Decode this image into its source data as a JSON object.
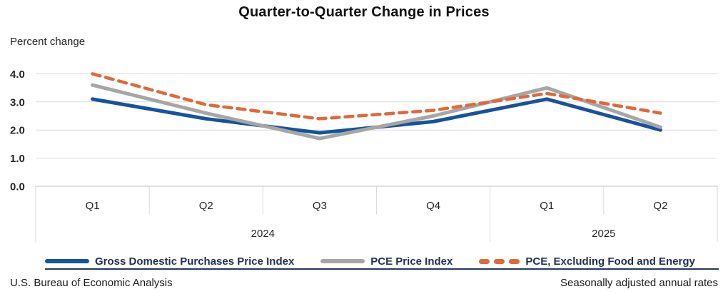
{
  "title": "Quarter-to-Quarter Change in Prices",
  "y_axis_title": "Percent change",
  "footer": {
    "source": "U.S. Bureau of Economic Analysis",
    "note": "Seasonally adjusted annual rates"
  },
  "colors": {
    "gridline": "#d9d9d9",
    "zero_line": "#bfbfbf",
    "tick_text": "#262626",
    "legend_text": "#1f3050",
    "footer_rule": "#223a5e",
    "blue": "#17539b",
    "gray": "#a6a6a6",
    "orange": "#e0693a"
  },
  "chart_data": {
    "type": "line",
    "title": "Quarter-to-Quarter Change in Prices",
    "ylabel": "Percent change",
    "categories": [
      "Q1",
      "Q2",
      "Q3",
      "Q4",
      "Q1",
      "Q2"
    ],
    "year_groups": [
      {
        "label": "2024",
        "span": 4
      },
      {
        "label": "2025",
        "span": 2
      }
    ],
    "yticks": [
      "4.0",
      "3.0",
      "2.0",
      "1.0",
      "0.0"
    ],
    "ylim": [
      0.0,
      4.0
    ],
    "grid": true,
    "legend_position": "bottom",
    "series": [
      {
        "name": "Gross Domestic Purchases Price Index",
        "color": "#17539b",
        "dash": false,
        "values": [
          3.1,
          2.4,
          1.9,
          2.3,
          3.1,
          2.0
        ]
      },
      {
        "name": "PCE Price Index",
        "color": "#a6a6a6",
        "dash": false,
        "values": [
          3.6,
          2.6,
          1.7,
          2.5,
          3.5,
          2.1
        ]
      },
      {
        "name": "PCE, Excluding Food and Energy",
        "color": "#e0693a",
        "dash": true,
        "values": [
          4.0,
          2.9,
          2.4,
          2.7,
          3.3,
          2.6
        ]
      }
    ]
  }
}
